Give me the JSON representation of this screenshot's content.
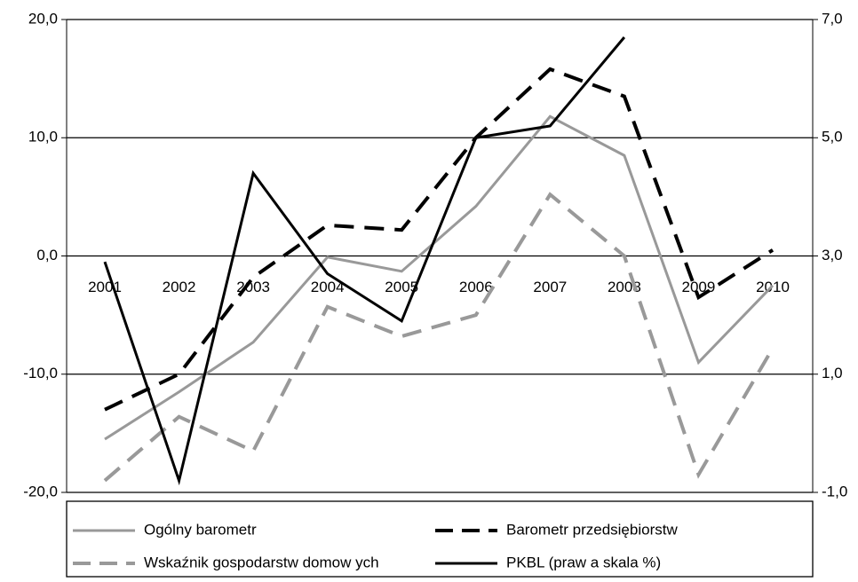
{
  "chart_data": {
    "type": "line",
    "categories": [
      "2001",
      "2002",
      "2003",
      "2004",
      "2005",
      "2006",
      "2007",
      "2008",
      "2009",
      "2010"
    ],
    "ylim": [
      -20,
      20
    ],
    "yticks": [
      {
        "value": -20,
        "label": "-20,0"
      },
      {
        "value": -10,
        "label": "-10,0"
      },
      {
        "value": 0,
        "label": "0,0"
      },
      {
        "value": 10,
        "label": "10,0"
      },
      {
        "value": 20,
        "label": "20,0"
      }
    ],
    "y2lim": [
      -1,
      7
    ],
    "y2ticks": [
      {
        "value": -1,
        "label": "-1,0"
      },
      {
        "value": 1,
        "label": "1,0"
      },
      {
        "value": 3,
        "label": "3,0"
      },
      {
        "value": 5,
        "label": "5,0"
      },
      {
        "value": 7,
        "label": "7,0"
      }
    ],
    "grid": true,
    "legend": "bottom",
    "series": [
      {
        "name": "Ogólny barometr",
        "color": "#999999",
        "dash": "solid",
        "values": [
          -15.5,
          -11.5,
          -7.3,
          -0.1,
          -1.3,
          4.2,
          11.8,
          8.5,
          -9,
          -2.5
        ]
      },
      {
        "name": "Barometr przedsiębiorstw",
        "color": "#000000",
        "dash": "dashed",
        "values": [
          -13,
          -10,
          -1.8,
          2.6,
          2.2,
          10,
          15.8,
          13.5,
          -3.5,
          0.5
        ]
      },
      {
        "name": "Wskaźnik gospodarstw  domow ych",
        "color": "#999999",
        "dash": "dashed",
        "values": [
          -19,
          -13.6,
          -16.5,
          -4.3,
          -6.8,
          -5,
          5.2,
          0,
          -18.5,
          -7.8
        ]
      },
      {
        "name": "PKBL (praw a skala %)",
        "color": "#000000",
        "dash": "solid",
        "axis": "y2",
        "values": [
          2.9,
          -0.8,
          4.4,
          2.7,
          1.9,
          5.0,
          5.2,
          6.7,
          null,
          null
        ]
      }
    ]
  }
}
